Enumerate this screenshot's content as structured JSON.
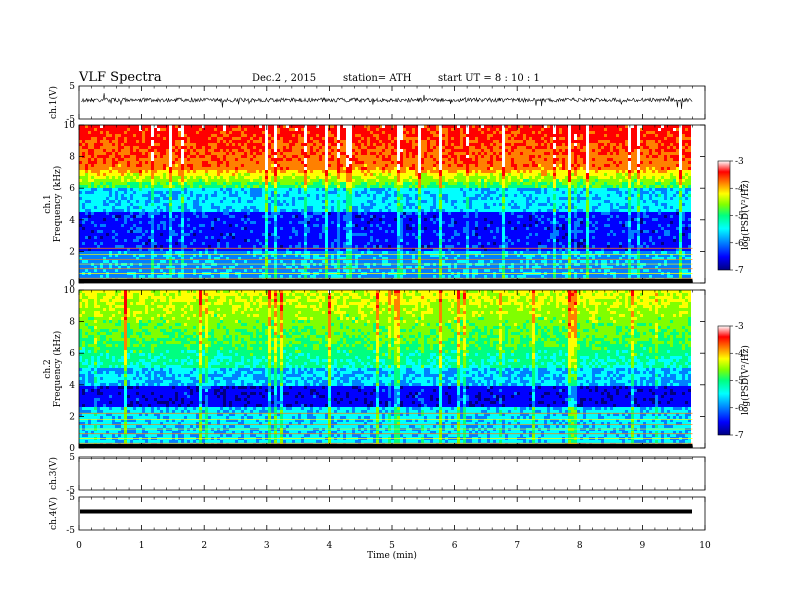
{
  "header": {
    "title": "VLF  Spectra",
    "date": "Dec.2  , 2015",
    "station": "station= ATH",
    "start": "start  UT =   8 : 10 : 1"
  },
  "chart_data": [
    {
      "type": "line",
      "panel": "ch1-waveform",
      "ylabel": "ch.1(V)",
      "ylim": [
        -5,
        5
      ],
      "yticks": [
        "5",
        "-5"
      ],
      "description_color": "#000000"
    },
    {
      "type": "heatmap",
      "panel": "ch1-spectrogram",
      "ylabel": "ch.1\nFrequency  (kHz)",
      "ylim": [
        0,
        10
      ],
      "yticks": [
        "0",
        "2",
        "4",
        "6",
        "8",
        "10"
      ],
      "colorbar": {
        "label": "log(PSD(V²/Hz)",
        "range": [
          -7,
          -3
        ],
        "ticks": [
          "-3",
          "-4",
          "-5",
          "-6",
          "-7"
        ]
      }
    },
    {
      "type": "heatmap",
      "panel": "ch2-spectrogram",
      "ylabel": "ch.2\nFrequency  (kHz)",
      "ylim": [
        0,
        10
      ],
      "yticks": [
        "0",
        "2",
        "4",
        "6",
        "8",
        "10"
      ],
      "colorbar": {
        "label": "log(PSD(V²/Hz)",
        "range": [
          -7,
          -3
        ],
        "ticks": [
          "-3",
          "-4",
          "-5",
          "-6",
          "-7"
        ]
      }
    },
    {
      "type": "line",
      "panel": "ch3-waveform",
      "ylabel": "ch.3(V)",
      "ylim": [
        -5,
        5
      ],
      "yticks": [
        "5",
        "-5"
      ]
    },
    {
      "type": "line",
      "panel": "ch4-waveform",
      "ylabel": "ch.4(V)",
      "ylim": [
        -5,
        5
      ],
      "yticks": [
        "5",
        "-5"
      ]
    }
  ],
  "xaxis": {
    "label": "Time  (min)",
    "range": [
      0,
      10
    ],
    "ticks": [
      "0",
      "1",
      "2",
      "3",
      "4",
      "5",
      "6",
      "7",
      "8",
      "9",
      "10"
    ],
    "data_end": 9.8
  },
  "colors": {
    "colormap": [
      "#000080",
      "#0000ff",
      "#0080ff",
      "#00ffff",
      "#00ff80",
      "#80ff00",
      "#ffff00",
      "#ff8000",
      "#ff0000",
      "#ffffff"
    ]
  }
}
